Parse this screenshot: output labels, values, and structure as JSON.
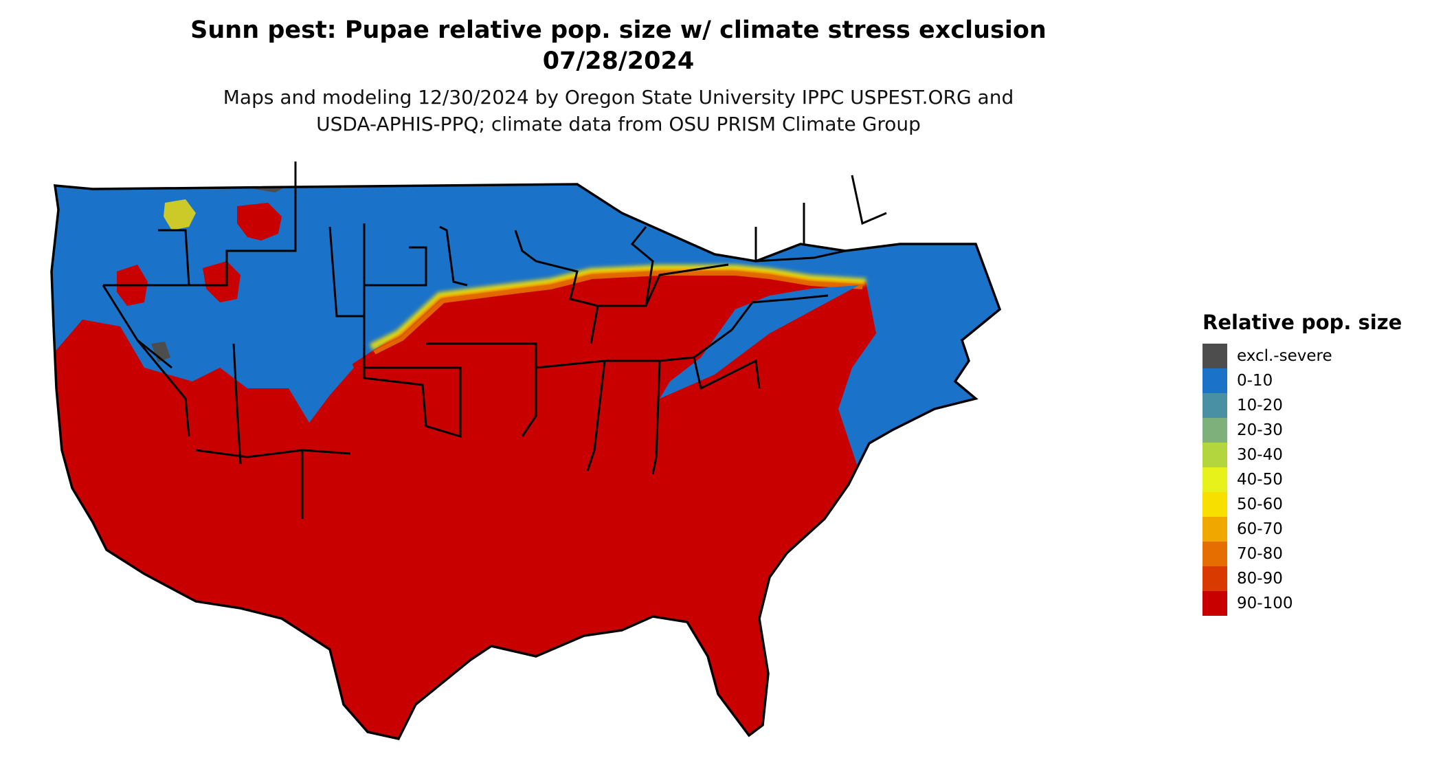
{
  "title": {
    "line1": "Sunn pest: Pupae relative pop. size w/ climate stress exclusion",
    "line2": "07/28/2024"
  },
  "subtitle": {
    "line1": "Maps and modeling 12/30/2024 by Oregon State University IPPC USPEST.ORG and",
    "line2": "USDA-APHIS-PPQ; climate data from OSU PRISM Climate Group"
  },
  "legend": {
    "title": "Relative pop. size",
    "items": [
      {
        "label": "excl.-severe",
        "color": "#4d4d4d"
      },
      {
        "label": "0-10",
        "color": "#1b73c9"
      },
      {
        "label": "10-20",
        "color": "#4a90a4"
      },
      {
        "label": "20-30",
        "color": "#7db07a"
      },
      {
        "label": "30-40",
        "color": "#b3d63e"
      },
      {
        "label": "40-50",
        "color": "#e6f21a"
      },
      {
        "label": "50-60",
        "color": "#f7e000"
      },
      {
        "label": "60-70",
        "color": "#f0a800"
      },
      {
        "label": "70-80",
        "color": "#e66e00"
      },
      {
        "label": "80-90",
        "color": "#d83a00"
      },
      {
        "label": "90-100",
        "color": "#c80000"
      }
    ]
  },
  "map": {
    "region": "Contiguous United States",
    "colors": {
      "low": "#1b73c9",
      "high": "#c80000",
      "excluded": "#4d4d4d",
      "mid": "#f7e000",
      "border": "#000000"
    }
  }
}
